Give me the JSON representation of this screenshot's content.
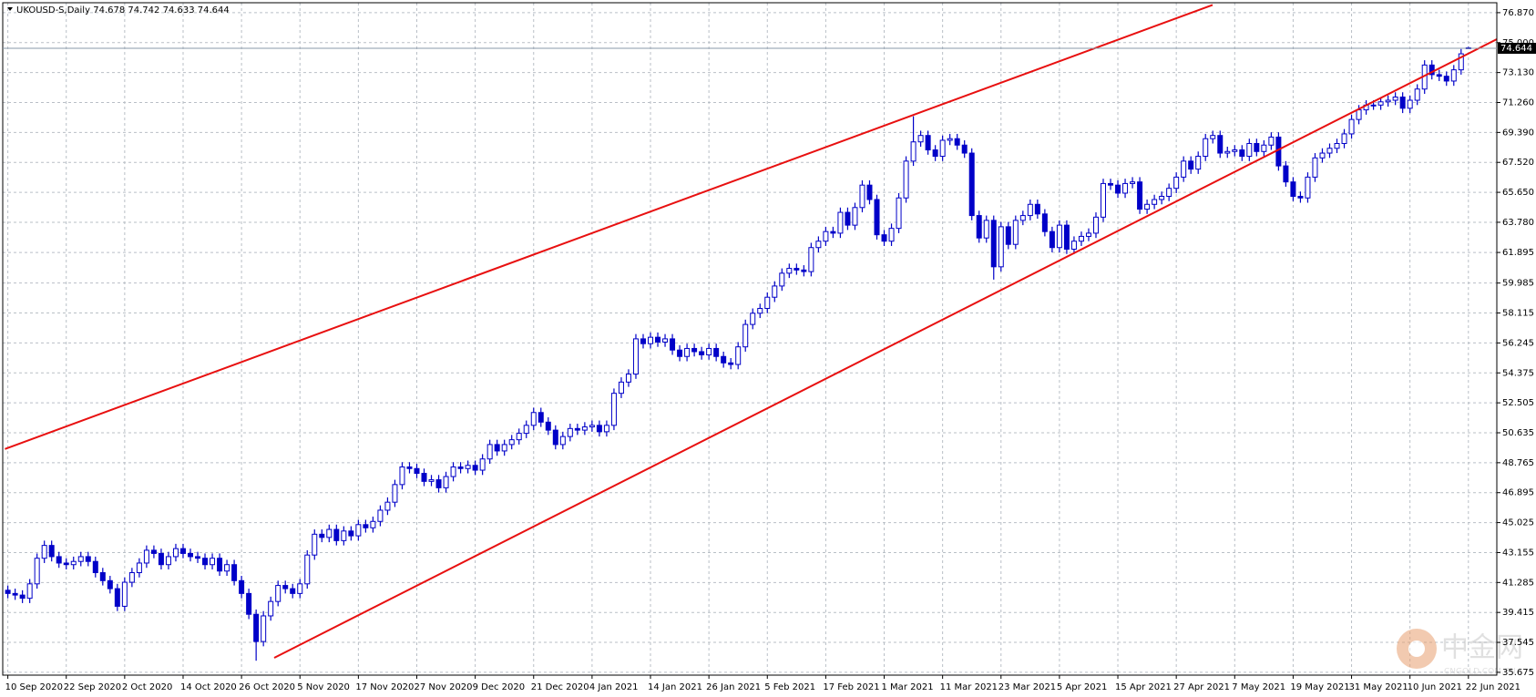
{
  "chart_data": {
    "type": "candlestick",
    "title": "UKOUSD-S,Daily",
    "color": "#0000c8",
    "up_fill": "#ffffff",
    "down_fill": "#0000c8",
    "grid": true,
    "watermark": {
      "text": "中金网",
      "sub": "CNGOLD.COM.CN"
    },
    "ylim": [
      35.5,
      77.49
    ],
    "yticks": [
      35.675,
      37.545,
      39.415,
      41.285,
      43.155,
      45.025,
      46.895,
      48.765,
      50.635,
      52.505,
      54.375,
      56.245,
      58.115,
      59.985,
      61.895,
      {
        "value": 63.78,
        "label": "63.780"
      },
      {
        "value": 65.65,
        "label": "65.650"
      },
      {
        "value": 67.52,
        "label": "67.520"
      },
      {
        "value": 69.39,
        "label": "69.390"
      },
      {
        "value": 71.26,
        "label": "71.260"
      },
      {
        "value": 73.13,
        "label": "73.130"
      },
      {
        "value": 75,
        "label": "75.000"
      },
      {
        "value": 76.87,
        "label": "76.870"
      }
    ],
    "categories": [
      "10 Sep 2020",
      null,
      null,
      null,
      null,
      null,
      null,
      null,
      "22 Sep 2020",
      null,
      null,
      null,
      null,
      null,
      null,
      null,
      "2 Oct 2020",
      null,
      null,
      null,
      null,
      null,
      null,
      null,
      "14 Oct 2020",
      null,
      null,
      null,
      null,
      null,
      null,
      null,
      "26 Oct 2020",
      null,
      null,
      null,
      null,
      null,
      null,
      null,
      "5 Nov 2020",
      null,
      null,
      null,
      null,
      null,
      null,
      null,
      "17 Nov 2020",
      null,
      null,
      null,
      null,
      null,
      null,
      null,
      "27 Nov 2020",
      null,
      null,
      null,
      null,
      null,
      null,
      null,
      "9 Dec 2020",
      null,
      null,
      null,
      null,
      null,
      null,
      null,
      "21 Dec 2020",
      null,
      null,
      null,
      null,
      null,
      null,
      null,
      "4 Jan 2021",
      null,
      null,
      null,
      null,
      null,
      null,
      null,
      "14 Jan 2021",
      null,
      null,
      null,
      null,
      null,
      null,
      null,
      "26 Jan 2021",
      null,
      null,
      null,
      null,
      null,
      null,
      null,
      "5 Feb 2021",
      null,
      null,
      null,
      null,
      null,
      null,
      null,
      "17 Feb 2021",
      null,
      null,
      null,
      null,
      null,
      null,
      null,
      "1 Mar 2021",
      null,
      null,
      null,
      null,
      null,
      null,
      null,
      "11 Mar 2021",
      null,
      null,
      null,
      null,
      null,
      null,
      null,
      "23 Mar 2021",
      null,
      null,
      null,
      null,
      null,
      null,
      null,
      "5 Apr 2021",
      null,
      null,
      null,
      null,
      null,
      null,
      null,
      "15 Apr 2021",
      null,
      null,
      null,
      null,
      null,
      null,
      null,
      "27 Apr 2021",
      null,
      null,
      null,
      null,
      null,
      null,
      null,
      "7 May 2021",
      null,
      null,
      null,
      null,
      null,
      null,
      null,
      "19 May 2021",
      null,
      null,
      null,
      null,
      null,
      null,
      null,
      "31 May 2021",
      null,
      null,
      null,
      null,
      null,
      null,
      null,
      "10 Jun 2021",
      null,
      null,
      null,
      null,
      null,
      null,
      null,
      "22 Jun 2021"
    ],
    "open": [
      40.8,
      40.6,
      40.5,
      40.3,
      41.2,
      42.8,
      43.6,
      42.9,
      42.5,
      42.4,
      42.6,
      42.9,
      42.6,
      41.9,
      41.4,
      40.9,
      39.8,
      41.3,
      41.9,
      42.5,
      43.3,
      43.1,
      42.4,
      42.9,
      43.4,
      43.1,
      42.9,
      42.8,
      42.4,
      42.8,
      42.0,
      42.4,
      41.4,
      40.6,
      39.3,
      37.6,
      39.2,
      40.1,
      41.1,
      40.9,
      40.6,
      41.2,
      43.0,
      44.3,
      44.1,
      44.6,
      43.9,
      44.5,
      44.2,
      44.9,
      44.7,
      45.1,
      45.8,
      46.3,
      47.4,
      48.5,
      48.4,
      48.1,
      47.6,
      47.7,
      47.2,
      47.9,
      48.5,
      48.4,
      48.6,
      48.3,
      49.0,
      49.9,
      49.5,
      49.9,
      50.2,
      50.6,
      51.1,
      51.9,
      51.3,
      50.8,
      49.9,
      50.4,
      50.9,
      50.8,
      51.0,
      51.1,
      50.7,
      51.1,
      53.1,
      53.8,
      54.3,
      56.5,
      56.2,
      56.6,
      56.3,
      56.5,
      55.8,
      55.4,
      55.9,
      55.7,
      55.5,
      55.9,
      55.4,
      55.0,
      54.9,
      56.0,
      57.4,
      58.1,
      58.4,
      59.1,
      59.8,
      60.6,
      60.9,
      60.8,
      60.7,
      62.2,
      62.6,
      63.2,
      63.1,
      64.4,
      63.6,
      64.7,
      66.1,
      65.2,
      63.0,
      62.6,
      63.4,
      65.3,
      67.6,
      68.8,
      69.2,
      68.3,
      67.9,
      68.9,
      69.0,
      68.6,
      68.1,
      64.2,
      62.8,
      63.9,
      61.0,
      63.5,
      62.4,
      63.9,
      64.2,
      64.9,
      64.3,
      63.2,
      62.2,
      63.6,
      62.1,
      62.6,
      62.9,
      63.1,
      64.1,
      66.2,
      66.1,
      65.6,
      66.2,
      66.3,
      64.6,
      64.9,
      65.2,
      65.4,
      65.9,
      66.6,
      67.6,
      67.1,
      67.9,
      69.0,
      69.2,
      68.1,
      68.2,
      68.3,
      67.9,
      68.7,
      68.2,
      68.6,
      69.1,
      67.3,
      66.3,
      65.4,
      65.3,
      66.6,
      67.8,
      68.1,
      68.4,
      68.7,
      69.3,
      70.2,
      70.8,
      71.1,
      71.1,
      71.3,
      71.4,
      71.6,
      70.9,
      71.4,
      72.1,
      73.6,
      73.0,
      72.9,
      72.6,
      73.3,
      74.678
    ],
    "high": [
      41.1,
      40.9,
      40.8,
      41.5,
      43.1,
      43.9,
      43.9,
      43.2,
      42.8,
      42.9,
      43.2,
      43.2,
      42.9,
      42.2,
      41.7,
      41.2,
      41.6,
      42.2,
      42.8,
      43.6,
      43.6,
      43.4,
      43.2,
      43.7,
      43.7,
      43.4,
      43.2,
      43.1,
      43.1,
      43.1,
      42.7,
      42.7,
      41.7,
      40.9,
      39.6,
      39.5,
      40.4,
      41.4,
      41.4,
      41.2,
      41.5,
      43.3,
      44.6,
      44.6,
      44.9,
      44.9,
      44.8,
      44.8,
      45.2,
      45.2,
      45.4,
      46.1,
      46.6,
      47.7,
      48.8,
      48.8,
      48.7,
      48.4,
      48.0,
      48.0,
      48.2,
      48.8,
      48.8,
      48.9,
      48.9,
      49.3,
      50.2,
      50.2,
      50.2,
      50.5,
      50.9,
      51.4,
      52.2,
      52.2,
      51.6,
      51.1,
      50.7,
      51.2,
      51.2,
      51.3,
      51.4,
      51.4,
      51.4,
      53.4,
      54.1,
      54.6,
      56.8,
      56.8,
      56.9,
      56.9,
      56.8,
      56.8,
      56.1,
      56.2,
      56.2,
      56.0,
      56.2,
      56.2,
      55.7,
      55.3,
      56.3,
      57.7,
      58.4,
      58.7,
      59.4,
      60.1,
      60.9,
      61.2,
      61.2,
      61.1,
      62.5,
      62.9,
      63.5,
      63.5,
      64.7,
      64.7,
      65.0,
      66.4,
      66.4,
      65.5,
      63.3,
      63.7,
      65.6,
      67.9,
      70.4,
      69.5,
      69.5,
      68.6,
      69.2,
      69.3,
      69.3,
      68.9,
      68.4,
      64.5,
      64.2,
      64.2,
      63.8,
      63.8,
      64.2,
      64.5,
      65.2,
      65.2,
      64.6,
      63.5,
      63.9,
      63.9,
      62.9,
      63.2,
      63.4,
      64.4,
      66.5,
      66.5,
      66.4,
      66.5,
      66.6,
      66.6,
      65.2,
      65.5,
      65.7,
      66.2,
      66.9,
      67.9,
      67.9,
      68.2,
      69.3,
      69.5,
      69.5,
      68.5,
      68.6,
      68.6,
      69.0,
      69.0,
      68.9,
      69.4,
      69.4,
      67.6,
      66.6,
      65.7,
      66.9,
      68.1,
      68.4,
      68.7,
      69.0,
      69.6,
      70.5,
      71.1,
      71.4,
      71.4,
      71.6,
      71.7,
      71.9,
      71.9,
      71.7,
      72.4,
      73.9,
      73.9,
      73.3,
      73.2,
      73.6,
      74.6,
      74.742
    ],
    "low": [
      40.3,
      40.2,
      40.0,
      40.0,
      40.9,
      42.5,
      42.6,
      42.2,
      42.1,
      42.1,
      42.3,
      42.3,
      41.6,
      41.1,
      40.6,
      39.5,
      39.5,
      41.0,
      41.6,
      42.2,
      42.8,
      42.1,
      42.1,
      42.6,
      42.8,
      42.6,
      42.5,
      42.1,
      42.1,
      41.7,
      41.7,
      41.1,
      40.3,
      39.0,
      36.4,
      37.3,
      38.9,
      39.8,
      40.6,
      40.3,
      40.3,
      40.9,
      42.7,
      43.8,
      43.8,
      43.6,
      43.6,
      43.9,
      43.9,
      44.4,
      44.4,
      44.8,
      45.5,
      46.0,
      47.1,
      48.1,
      47.8,
      47.3,
      47.3,
      46.9,
      46.9,
      47.6,
      48.1,
      48.1,
      48.0,
      48.0,
      48.7,
      49.2,
      49.2,
      49.6,
      49.9,
      50.3,
      50.8,
      51.0,
      50.5,
      49.6,
      49.6,
      50.1,
      50.5,
      50.5,
      50.7,
      50.4,
      50.4,
      50.8,
      52.8,
      53.5,
      54.0,
      55.9,
      55.9,
      56.0,
      56.0,
      55.5,
      55.1,
      55.1,
      55.4,
      55.2,
      55.2,
      55.1,
      54.7,
      54.6,
      54.6,
      55.7,
      57.1,
      57.8,
      58.1,
      58.8,
      59.5,
      60.3,
      60.5,
      60.4,
      60.4,
      61.9,
      62.3,
      62.8,
      62.8,
      63.3,
      63.3,
      64.4,
      64.9,
      62.7,
      62.3,
      62.3,
      63.1,
      65.0,
      67.3,
      68.5,
      68.0,
      67.6,
      67.6,
      68.6,
      68.3,
      67.8,
      63.9,
      62.5,
      62.5,
      60.2,
      60.7,
      62.1,
      62.1,
      63.6,
      63.9,
      64.0,
      62.9,
      61.9,
      61.9,
      61.8,
      61.8,
      62.3,
      62.6,
      62.8,
      63.8,
      65.8,
      65.3,
      65.3,
      65.9,
      64.3,
      64.3,
      64.6,
      64.9,
      65.1,
      65.6,
      66.3,
      66.8,
      66.8,
      67.6,
      68.7,
      67.8,
      67.8,
      67.9,
      67.6,
      67.6,
      67.9,
      67.9,
      68.3,
      67.0,
      66.0,
      65.1,
      65.0,
      65.0,
      66.3,
      67.5,
      67.8,
      68.1,
      68.4,
      69.0,
      69.9,
      70.5,
      70.8,
      70.8,
      71.0,
      71.1,
      70.6,
      70.6,
      71.1,
      71.8,
      72.7,
      72.6,
      72.3,
      72.3,
      73.0,
      74.633
    ],
    "close": [
      40.6,
      40.5,
      40.3,
      41.2,
      42.8,
      43.6,
      42.9,
      42.5,
      42.4,
      42.6,
      42.9,
      42.6,
      41.9,
      41.4,
      40.9,
      39.8,
      41.3,
      41.9,
      42.5,
      43.3,
      43.1,
      42.4,
      42.9,
      43.4,
      43.1,
      42.9,
      42.8,
      42.4,
      42.8,
      42.0,
      42.4,
      41.4,
      40.6,
      39.3,
      37.6,
      39.2,
      40.1,
      41.1,
      40.9,
      40.6,
      41.2,
      43.0,
      44.3,
      44.1,
      44.6,
      43.9,
      44.5,
      44.2,
      44.9,
      44.7,
      45.1,
      45.8,
      46.3,
      47.4,
      48.5,
      48.4,
      48.1,
      47.6,
      47.7,
      47.2,
      47.9,
      48.5,
      48.4,
      48.6,
      48.3,
      49.0,
      49.9,
      49.5,
      49.9,
      50.2,
      50.6,
      51.1,
      51.9,
      51.3,
      50.8,
      49.9,
      50.4,
      50.9,
      50.8,
      51.0,
      51.1,
      50.7,
      51.1,
      53.1,
      53.8,
      54.3,
      56.5,
      56.2,
      56.6,
      56.3,
      56.5,
      55.8,
      55.4,
      55.9,
      55.7,
      55.5,
      55.9,
      55.4,
      55.0,
      54.9,
      56.0,
      57.4,
      58.1,
      58.4,
      59.1,
      59.8,
      60.6,
      60.9,
      60.8,
      60.7,
      62.2,
      62.6,
      63.2,
      63.1,
      64.4,
      63.6,
      64.7,
      66.1,
      65.2,
      63.0,
      62.6,
      63.4,
      65.3,
      67.6,
      68.8,
      69.2,
      68.3,
      67.9,
      68.9,
      69.0,
      68.6,
      68.1,
      64.2,
      62.8,
      63.9,
      61.0,
      63.5,
      62.4,
      63.9,
      64.2,
      64.9,
      64.3,
      63.2,
      62.2,
      63.6,
      62.1,
      62.6,
      62.9,
      63.1,
      64.1,
      66.2,
      66.1,
      65.6,
      66.2,
      66.3,
      64.6,
      64.9,
      65.2,
      65.4,
      65.9,
      66.6,
      67.6,
      67.1,
      67.9,
      69.0,
      69.2,
      68.1,
      68.2,
      68.3,
      67.9,
      68.7,
      68.2,
      68.6,
      69.1,
      67.3,
      66.3,
      65.4,
      65.3,
      66.6,
      67.8,
      68.1,
      68.4,
      68.7,
      69.3,
      70.2,
      70.8,
      71.1,
      71.1,
      71.3,
      71.4,
      71.6,
      70.9,
      71.4,
      72.1,
      73.6,
      73.0,
      72.9,
      72.6,
      73.3,
      74.3,
      74.644
    ]
  }
}
